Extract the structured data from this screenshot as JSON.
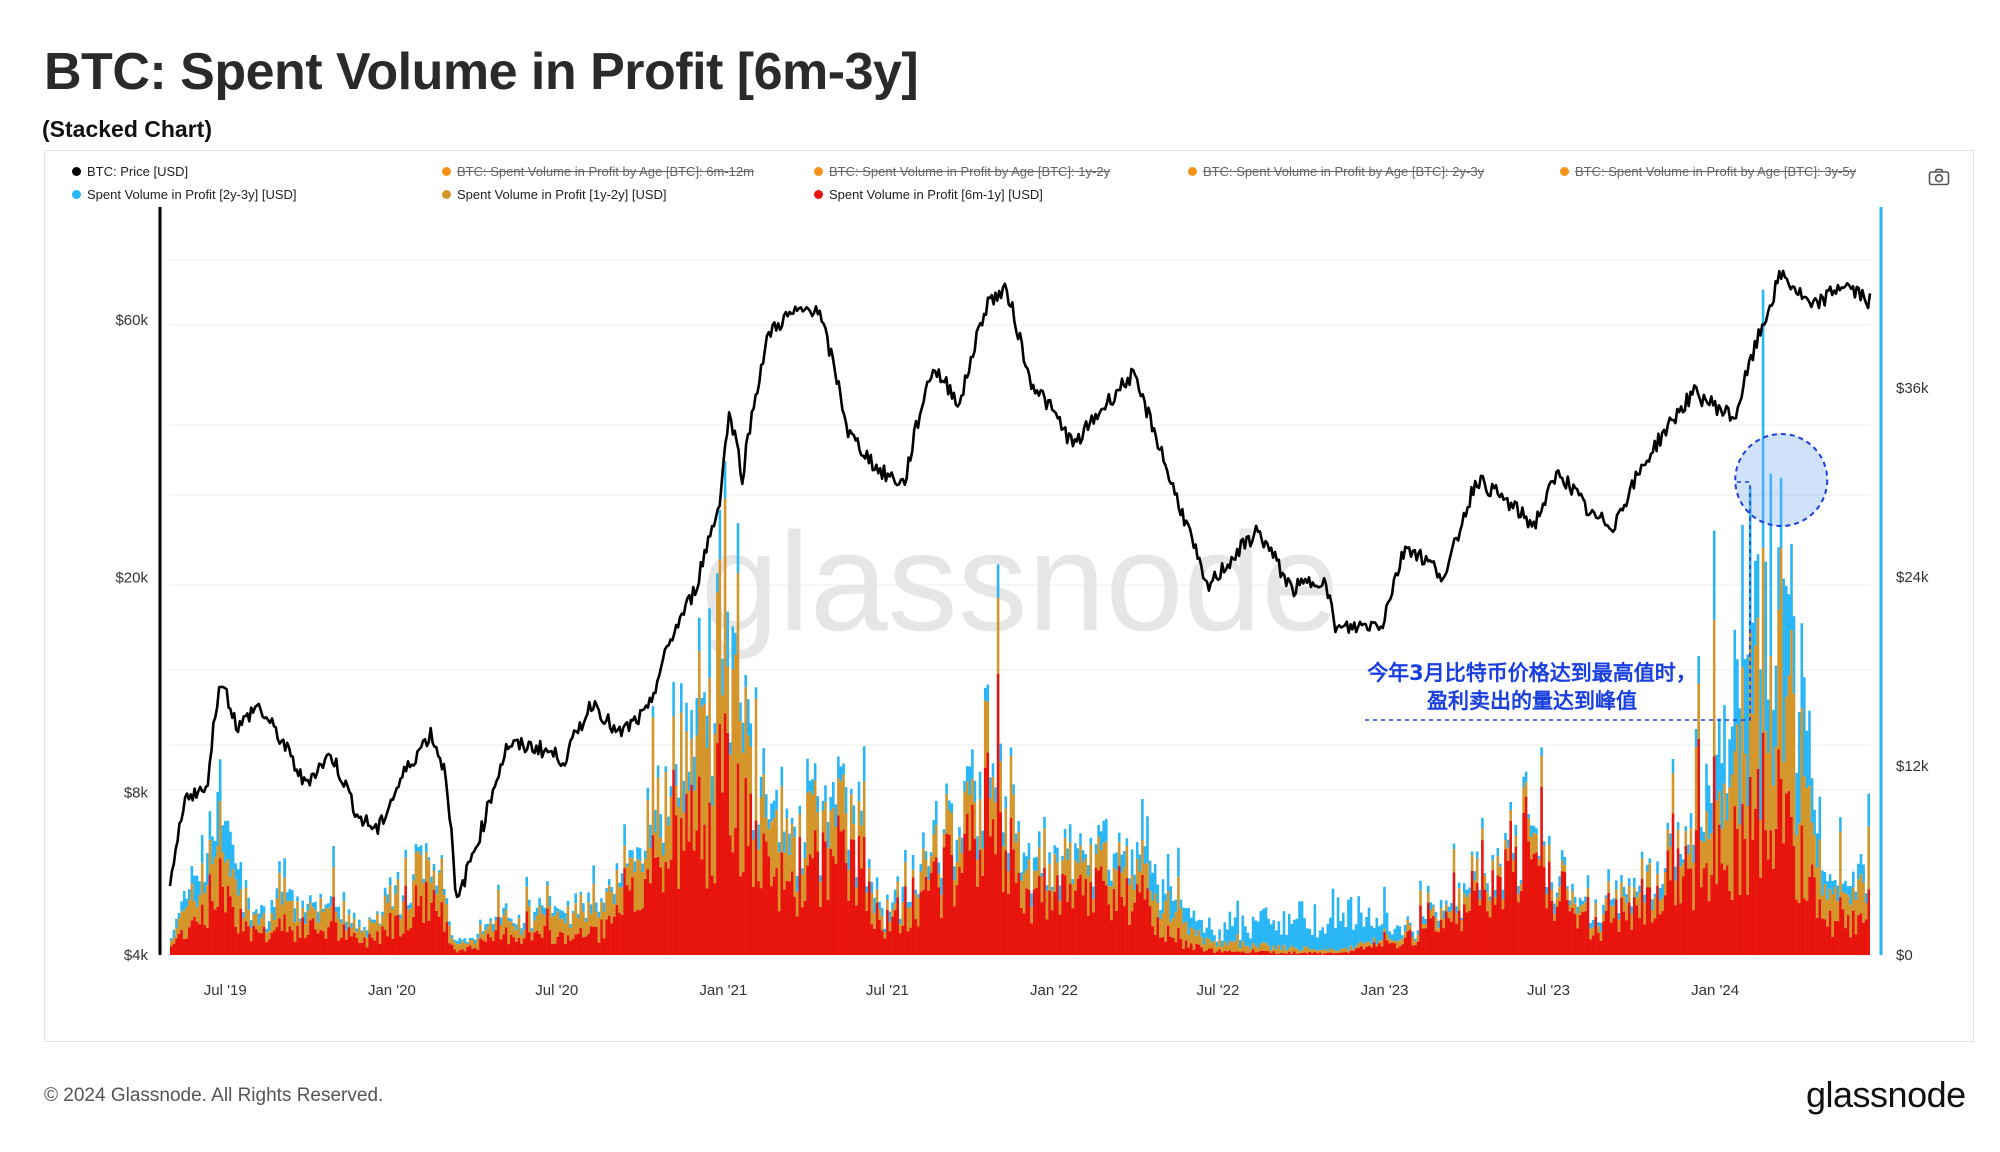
{
  "header": {
    "title": "BTC: Spent Volume in Profit [6m-3y]",
    "subtitle": "(Stacked Chart)"
  },
  "legend": {
    "items": [
      {
        "label": "BTC: Price [USD]",
        "color": "#000000",
        "hidden": false
      },
      {
        "label": "BTC: Spent Volume in Profit by Age [BTC]: 6m-12m",
        "color": "#f7931a",
        "hidden": true
      },
      {
        "label": "BTC: Spent Volume in Profit by Age [BTC]: 1y-2y",
        "color": "#f7931a",
        "hidden": true
      },
      {
        "label": "BTC: Spent Volume in Profit by Age [BTC]: 2y-3y",
        "color": "#f7931a",
        "hidden": true
      },
      {
        "label": "BTC: Spent Volume in Profit by Age [BTC]: 3y-5y",
        "color": "#f7931a",
        "hidden": true
      },
      {
        "label": "Spent Volume in Profit [2y-3y] [USD]",
        "color": "#29b6f6",
        "hidden": false
      },
      {
        "label": "Spent Volume in Profit [1y-2y] [USD]",
        "color": "#d4952a",
        "hidden": false
      },
      {
        "label": "Spent Volume in Profit [6m-1y] [USD]",
        "color": "#e8140c",
        "hidden": false
      }
    ],
    "camera_icon": "camera-icon"
  },
  "annotation": {
    "line1": "今年3月比特币价格达到最高值时，",
    "line2": "盈利卖出的量达到峰值",
    "color": "#1a3fe0"
  },
  "watermark": "glassnode",
  "footer": {
    "copyright": "© 2024 Glassnode. All Rights Reserved.",
    "brand": "glassnode"
  },
  "chart_data": {
    "type": "area",
    "x_ticks": [
      "Jul '19",
      "Jan '20",
      "Jul '20",
      "Jan '21",
      "Jul '21",
      "Jan '22",
      "Jul '22",
      "Jan '23",
      "Jul '23",
      "Jan '24"
    ],
    "x_range": [
      "2019-05-01",
      "2024-06-20"
    ],
    "y_left": {
      "label": "",
      "scale": "log",
      "ticks": [
        "$4k",
        "$8k",
        "$20k",
        "$60k"
      ],
      "tick_values": [
        4000,
        8000,
        20000,
        60000
      ]
    },
    "y_right": {
      "label": "",
      "scale": "linear",
      "ticks": [
        "$0",
        "$12k",
        "$24k",
        "$36k"
      ],
      "tick_values": [
        0,
        12000,
        24000,
        36000
      ]
    },
    "colors": {
      "price": "#000000",
      "s2y3y": "#29b6f6",
      "s1y2y": "#d4952a",
      "s6m1y": "#e8140c",
      "grid": "#ececec"
    },
    "price_series": {
      "name": "BTC: Price [USD]",
      "points": [
        [
          "2019-05-01",
          5300
        ],
        [
          "2019-05-20",
          8000
        ],
        [
          "2019-06-10",
          8000
        ],
        [
          "2019-06-26",
          13000
        ],
        [
          "2019-07-15",
          10500
        ],
        [
          "2019-08-05",
          11600
        ],
        [
          "2019-09-01",
          10000
        ],
        [
          "2019-09-26",
          8300
        ],
        [
          "2019-10-26",
          9400
        ],
        [
          "2019-11-25",
          7200
        ],
        [
          "2019-12-17",
          6800
        ],
        [
          "2020-01-15",
          8700
        ],
        [
          "2020-02-13",
          10300
        ],
        [
          "2020-03-01",
          8600
        ],
        [
          "2020-03-12",
          4900
        ],
        [
          "2020-04-10",
          6900
        ],
        [
          "2020-05-08",
          9800
        ],
        [
          "2020-06-10",
          9700
        ],
        [
          "2020-07-10",
          9200
        ],
        [
          "2020-08-10",
          11800
        ],
        [
          "2020-09-06",
          10200
        ],
        [
          "2020-10-10",
          11300
        ],
        [
          "2020-11-05",
          15500
        ],
        [
          "2020-12-01",
          19000
        ],
        [
          "2020-12-27",
          27000
        ],
        [
          "2021-01-08",
          40500
        ],
        [
          "2021-01-22",
          30800
        ],
        [
          "2021-02-21",
          57000
        ],
        [
          "2021-03-13",
          61000
        ],
        [
          "2021-04-14",
          63500
        ],
        [
          "2021-05-19",
          37000
        ],
        [
          "2021-06-22",
          31500
        ],
        [
          "2021-07-20",
          29800
        ],
        [
          "2021-08-20",
          49000
        ],
        [
          "2021-09-20",
          42000
        ],
        [
          "2021-10-20",
          65000
        ],
        [
          "2021-11-10",
          68000
        ],
        [
          "2021-12-04",
          47000
        ],
        [
          "2022-01-23",
          35000
        ],
        [
          "2022-03-28",
          47500
        ],
        [
          "2022-05-10",
          30000
        ],
        [
          "2022-06-18",
          19000
        ],
        [
          "2022-08-14",
          24400
        ],
        [
          "2022-09-20",
          19000
        ],
        [
          "2022-10-25",
          20000
        ],
        [
          "2022-11-09",
          16000
        ],
        [
          "2022-12-30",
          16500
        ],
        [
          "2023-01-25",
          23000
        ],
        [
          "2023-03-10",
          20000
        ],
        [
          "2023-04-13",
          30500
        ],
        [
          "2023-06-15",
          25000
        ],
        [
          "2023-07-13",
          31400
        ],
        [
          "2023-08-17",
          26000
        ],
        [
          "2023-09-11",
          25000
        ],
        [
          "2023-10-24",
          34500
        ],
        [
          "2023-12-08",
          44000
        ],
        [
          "2024-01-23",
          39500
        ],
        [
          "2024-02-28",
          62000
        ],
        [
          "2024-03-14",
          73000
        ],
        [
          "2024-04-17",
          63000
        ],
        [
          "2024-05-21",
          70000
        ],
        [
          "2024-06-20",
          65000
        ]
      ]
    },
    "stack_series_keys": [
      "2024-03-14"
    ],
    "series": [
      {
        "name": "Spent Volume in Profit [6m-1y] [USD]",
        "key": "s6m1y",
        "points": [
          [
            "2019-05-01",
            500
          ],
          [
            "2019-06-26",
            4500
          ],
          [
            "2019-08-01",
            1500
          ],
          [
            "2019-10-26",
            1800
          ],
          [
            "2019-12-01",
            800
          ],
          [
            "2020-02-13",
            4000
          ],
          [
            "2020-03-12",
            200
          ],
          [
            "2020-05-08",
            1400
          ],
          [
            "2020-07-27",
            1200
          ],
          [
            "2020-09-01",
            2000
          ],
          [
            "2020-11-25",
            8000
          ],
          [
            "2021-01-08",
            11000
          ],
          [
            "2021-02-21",
            4500
          ],
          [
            "2021-05-19",
            6500
          ],
          [
            "2021-07-01",
            2000
          ],
          [
            "2021-09-07",
            5500
          ],
          [
            "2021-10-20",
            9000
          ],
          [
            "2021-12-04",
            4000
          ],
          [
            "2022-01-23",
            3500
          ],
          [
            "2022-03-01",
            4800
          ],
          [
            "2022-05-10",
            1200
          ],
          [
            "2022-06-18",
            300
          ],
          [
            "2022-11-09",
            100
          ],
          [
            "2023-01-25",
            1000
          ],
          [
            "2023-03-15",
            2800
          ],
          [
            "2023-06-15",
            6400
          ],
          [
            "2023-08-17",
            1500
          ],
          [
            "2023-10-24",
            4000
          ],
          [
            "2023-12-08",
            6000
          ],
          [
            "2024-03-14",
            9800
          ],
          [
            "2024-05-01",
            2500
          ],
          [
            "2024-06-20",
            1800
          ]
        ]
      },
      {
        "name": "Spent Volume in Profit [1y-2y] [USD]",
        "key": "s1y2y",
        "points": [
          [
            "2019-05-01",
            600
          ],
          [
            "2019-06-26",
            3000
          ],
          [
            "2019-08-01",
            1200
          ],
          [
            "2019-10-26",
            1500
          ],
          [
            "2019-12-01",
            700
          ],
          [
            "2020-02-13",
            3200
          ],
          [
            "2020-03-12",
            300
          ],
          [
            "2020-05-08",
            1000
          ],
          [
            "2020-07-27",
            1600
          ],
          [
            "2020-09-01",
            1500
          ],
          [
            "2020-11-25",
            5000
          ],
          [
            "2021-01-08",
            10000
          ],
          [
            "2021-02-21",
            3000
          ],
          [
            "2021-05-19",
            2500
          ],
          [
            "2021-07-01",
            800
          ],
          [
            "2021-09-07",
            1800
          ],
          [
            "2021-10-20",
            3500
          ],
          [
            "2021-12-04",
            2000
          ],
          [
            "2022-01-23",
            1800
          ],
          [
            "2022-03-01",
            2000
          ],
          [
            "2022-05-10",
            1800
          ],
          [
            "2022-06-18",
            600
          ],
          [
            "2022-11-09",
            200
          ],
          [
            "2023-01-25",
            300
          ],
          [
            "2023-03-15",
            700
          ],
          [
            "2023-06-15",
            1000
          ],
          [
            "2023-08-17",
            600
          ],
          [
            "2023-10-24",
            1300
          ],
          [
            "2023-12-08",
            2000
          ],
          [
            "2024-03-14",
            10000
          ],
          [
            "2024-05-01",
            2000
          ],
          [
            "2024-06-20",
            1800
          ]
        ]
      },
      {
        "name": "Spent Volume in Profit [2y-3y] [USD]",
        "key": "s2y3y",
        "points": [
          [
            "2019-05-01",
            200
          ],
          [
            "2019-06-26",
            2500
          ],
          [
            "2019-08-01",
            600
          ],
          [
            "2019-10-26",
            600
          ],
          [
            "2019-12-01",
            300
          ],
          [
            "2020-02-13",
            500
          ],
          [
            "2020-03-12",
            200
          ],
          [
            "2020-05-08",
            400
          ],
          [
            "2020-07-27",
            500
          ],
          [
            "2020-09-01",
            500
          ],
          [
            "2020-11-25",
            1500
          ],
          [
            "2021-01-08",
            2500
          ],
          [
            "2021-02-21",
            1000
          ],
          [
            "2021-05-19",
            1200
          ],
          [
            "2021-07-01",
            600
          ],
          [
            "2021-09-07",
            900
          ],
          [
            "2021-10-20",
            1500
          ],
          [
            "2021-12-04",
            800
          ],
          [
            "2022-01-23",
            800
          ],
          [
            "2022-03-01",
            1000
          ],
          [
            "2022-05-10",
            1600
          ],
          [
            "2022-06-18",
            900
          ],
          [
            "2022-11-09",
            2800
          ],
          [
            "2023-01-25",
            400
          ],
          [
            "2023-03-15",
            400
          ],
          [
            "2023-06-15",
            500
          ],
          [
            "2023-08-17",
            400
          ],
          [
            "2023-10-24",
            500
          ],
          [
            "2023-12-08",
            900
          ],
          [
            "2024-03-14",
            11000
          ],
          [
            "2024-05-01",
            800
          ],
          [
            "2024-06-20",
            900
          ]
        ]
      }
    ],
    "highlight": {
      "date": "2024-03-14",
      "label": "peak"
    },
    "grid": true,
    "legend_position": "top"
  }
}
